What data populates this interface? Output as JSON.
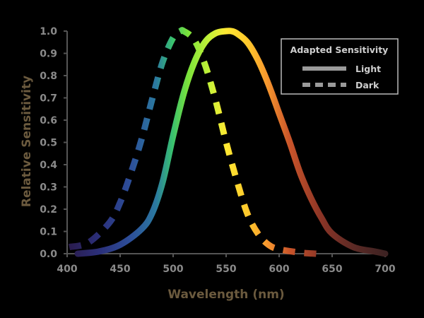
{
  "chart_data": {
    "type": "line",
    "title": "",
    "xlabel": "Wavelength (nm)",
    "ylabel": "Relative Sensitivity",
    "xlim": [
      400,
      700
    ],
    "ylim": [
      0.0,
      1.0
    ],
    "x_ticks": [
      400,
      450,
      500,
      550,
      600,
      650,
      700
    ],
    "y_ticks": [
      "0.0",
      "0.1",
      "0.2",
      "0.3",
      "0.4",
      "0.5",
      "0.6",
      "0.7",
      "0.8",
      "0.9",
      "1.0"
    ],
    "series": [
      {
        "name": "Light",
        "style": "solid",
        "x": [
          410,
          430,
          450,
          470,
          480,
          490,
          500,
          510,
          520,
          530,
          540,
          550,
          555,
          560,
          570,
          580,
          590,
          600,
          610,
          620,
          630,
          640,
          650,
          670,
          690,
          700
        ],
        "y": [
          0.0,
          0.01,
          0.04,
          0.11,
          0.18,
          0.32,
          0.53,
          0.72,
          0.86,
          0.95,
          0.99,
          1.0,
          1.0,
          0.99,
          0.95,
          0.87,
          0.76,
          0.63,
          0.5,
          0.36,
          0.25,
          0.16,
          0.09,
          0.03,
          0.01,
          0.0
        ]
      },
      {
        "name": "Dark",
        "style": "dashed",
        "x": [
          402,
          420,
          440,
          450,
          460,
          470,
          480,
          490,
          500,
          507,
          510,
          520,
          530,
          540,
          550,
          560,
          570,
          580,
          590,
          600,
          620,
          635
        ],
        "y": [
          0.03,
          0.05,
          0.14,
          0.23,
          0.36,
          0.51,
          0.69,
          0.86,
          0.97,
          1.0,
          1.0,
          0.96,
          0.85,
          0.69,
          0.5,
          0.33,
          0.18,
          0.09,
          0.04,
          0.02,
          0.005,
          0.0
        ]
      }
    ],
    "legend": {
      "title": "Adapted Sensitivity",
      "position": "top-right",
      "entries": [
        {
          "label": "Light",
          "style": "solid"
        },
        {
          "label": "Dark",
          "style": "dashed"
        }
      ]
    },
    "colors": {
      "background": "#000000",
      "axis": "#555555",
      "tick_text": "#8a8a8a",
      "axis_title": "#6b5a3e",
      "legend_border": "#bbbbbb",
      "legend_swatch": "#9a9a9a"
    }
  }
}
